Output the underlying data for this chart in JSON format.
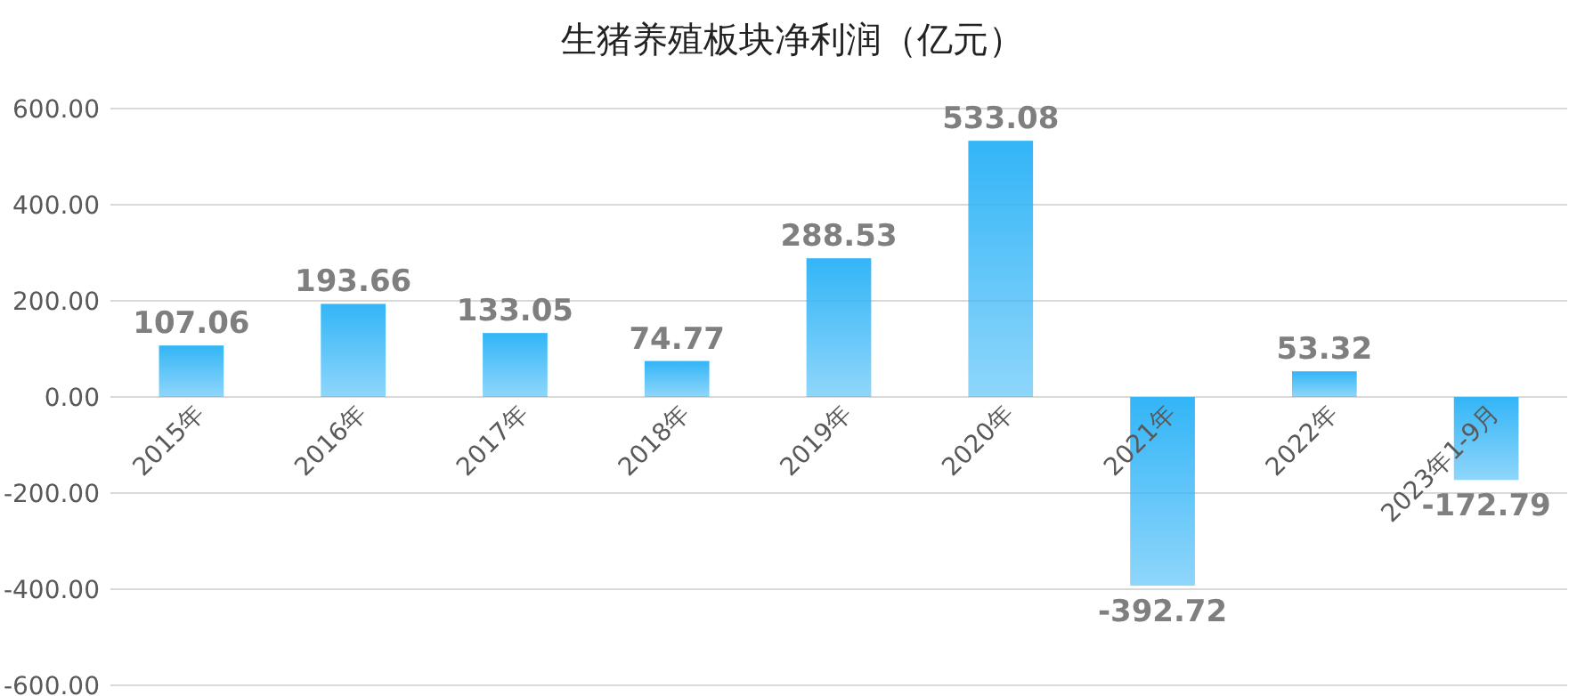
{
  "chart_data": {
    "type": "bar",
    "title": "生猪养殖板块净利润（亿元）",
    "categories": [
      "2015年",
      "2016年",
      "2017年",
      "2018年",
      "2019年",
      "2020年",
      "2021年",
      "2022年",
      "2023年1-9月"
    ],
    "values": [
      107.06,
      193.66,
      133.05,
      74.77,
      288.53,
      533.08,
      -392.72,
      53.32,
      -172.79
    ],
    "color": "#33b5f7",
    "ylim": [
      -600,
      600
    ],
    "yticks": [
      {
        "value": -600,
        "label": "-600.00"
      },
      {
        "value": -400,
        "label": "-400.00"
      },
      {
        "value": -200,
        "label": "-200.00"
      },
      {
        "value": 0,
        "label": "0.00"
      },
      {
        "value": 200,
        "label": "200.00"
      },
      {
        "value": 400,
        "label": "400.00"
      },
      {
        "value": 600,
        "label": "600.00"
      }
    ],
    "grid": "y",
    "data_labels": true
  }
}
